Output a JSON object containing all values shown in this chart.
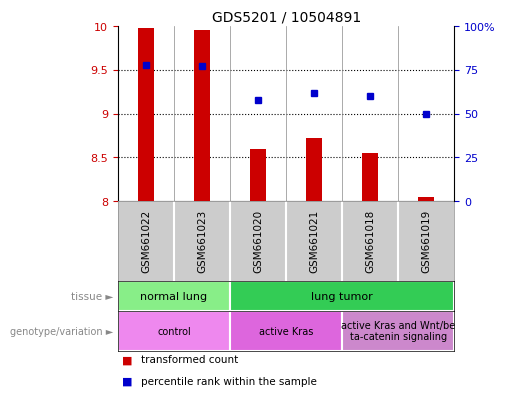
{
  "title": "GDS5201 / 10504891",
  "samples": [
    "GSM661022",
    "GSM661023",
    "GSM661020",
    "GSM661021",
    "GSM661018",
    "GSM661019"
  ],
  "transformed_count": [
    9.98,
    9.95,
    8.6,
    8.72,
    8.55,
    8.05
  ],
  "percentile_rank": [
    78,
    77,
    58,
    62,
    60,
    50
  ],
  "ylim_left": [
    8,
    10
  ],
  "ylim_right": [
    0,
    100
  ],
  "yticks_left": [
    8,
    8.5,
    9,
    9.5,
    10
  ],
  "yticks_right": [
    0,
    25,
    50,
    75,
    100
  ],
  "bar_color": "#cc0000",
  "dot_color": "#0000cc",
  "bar_bottom": 8,
  "tissue_groups": [
    {
      "label": "normal lung",
      "start": 0,
      "end": 2,
      "color": "#88ee88"
    },
    {
      "label": "lung tumor",
      "start": 2,
      "end": 6,
      "color": "#33cc55"
    }
  ],
  "genotype_groups": [
    {
      "label": "control",
      "start": 0,
      "end": 2,
      "color": "#ee88ee"
    },
    {
      "label": "active Kras",
      "start": 2,
      "end": 4,
      "color": "#dd66dd"
    },
    {
      "label": "active Kras and Wnt/be\nta-catenin signaling",
      "start": 4,
      "end": 6,
      "color": "#cc88cc"
    }
  ],
  "legend_bar_label": "transformed count",
  "legend_dot_label": "percentile rank within the sample",
  "tissue_row_label": "tissue",
  "genotype_row_label": "genotype/variation",
  "sample_box_color": "#cccccc",
  "background_color": "#ffffff",
  "left_label_color": "#888888"
}
